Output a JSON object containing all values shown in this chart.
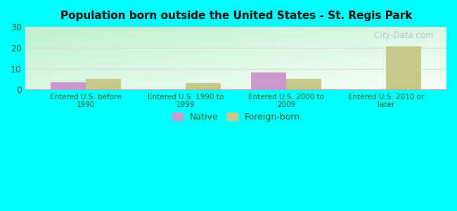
{
  "title": "Population born outside the United States - St. Regis Park",
  "categories": [
    "Entered U.S. before\n1990",
    "Entered U.S. 1990 to\n1999",
    "Entered U.S. 2000 to\n2009",
    "Entered U.S. 2010 or\nlater"
  ],
  "native_values": [
    3.5,
    0,
    8.0,
    0
  ],
  "foreign_born_values": [
    5.0,
    3.0,
    5.0,
    20.5
  ],
  "native_color": "#cc99cc",
  "foreign_born_color": "#c5c98a",
  "ylim": [
    0,
    30
  ],
  "yticks": [
    0,
    10,
    20,
    30
  ],
  "bar_width": 0.35,
  "background_color": "#00ffff",
  "grid_color": "#e0e0e0",
  "tick_label_color": "#336633",
  "title_color": "#000000",
  "legend_native_label": "Native",
  "legend_foreign_label": "Foreign-born",
  "watermark": "  City-Data.com"
}
